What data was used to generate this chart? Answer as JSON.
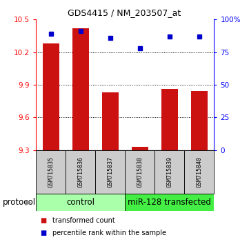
{
  "title": "GDS4415 / NM_203507_at",
  "samples": [
    "GSM715835",
    "GSM715836",
    "GSM715837",
    "GSM715838",
    "GSM715839",
    "GSM715840"
  ],
  "red_values": [
    10.28,
    10.42,
    9.83,
    9.33,
    9.86,
    9.84
  ],
  "blue_values": [
    89,
    91,
    86,
    78,
    87,
    87
  ],
  "ylim_left": [
    9.3,
    10.5
  ],
  "ylim_right": [
    0,
    100
  ],
  "yticks_left": [
    9.3,
    9.6,
    9.9,
    10.2,
    10.5
  ],
  "yticks_right": [
    0,
    25,
    50,
    75,
    100
  ],
  "ytick_labels_right": [
    "0",
    "25",
    "50",
    "75",
    "100%"
  ],
  "bar_color": "#cc1111",
  "dot_color": "#0000cc",
  "bar_bottom": 9.3,
  "control_color": "#aaffaa",
  "mir_color": "#44ee44",
  "xlabel_bg": "#cccccc",
  "title_fontsize": 9,
  "tick_fontsize": 7.5,
  "sample_fontsize": 6,
  "legend_fontsize": 7,
  "protocol_fontsize": 8.5
}
